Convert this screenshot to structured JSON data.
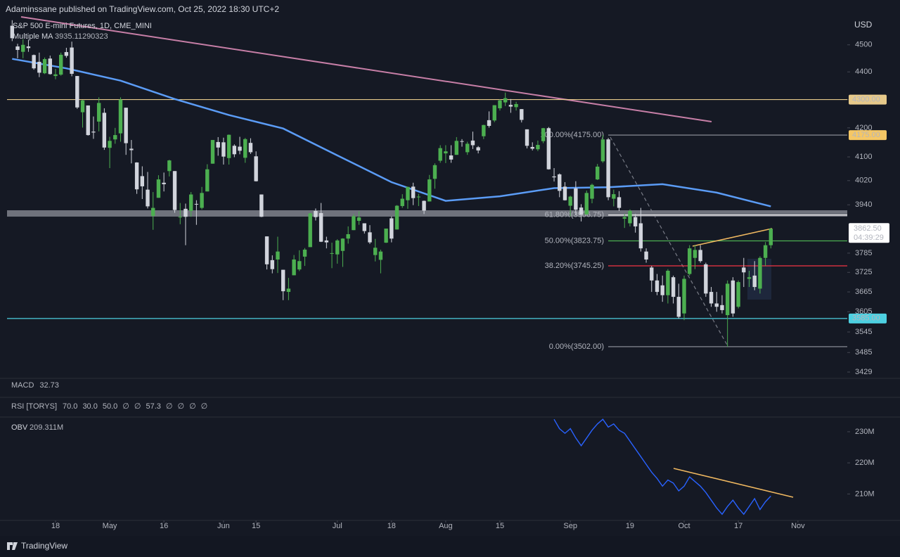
{
  "header": {
    "byline": "Adaminssane published on TradingView.com, Oct 25, 2022 18:30 UTC+2",
    "currency": "USD",
    "footer": "TradingView"
  },
  "chart_data": [
    {
      "type": "candlestick",
      "title": "S&P 500 E-mini Futures, 1D, CME_MINI",
      "up_color": "#4caf50",
      "down_color": "#d1d4dc",
      "candles": [
        [
          4572,
          4593,
          4514,
          4525
        ],
        [
          4494,
          4504,
          4450,
          4481
        ],
        [
          4474,
          4521,
          4450,
          4500
        ],
        [
          4494,
          4520,
          4474,
          4488
        ],
        [
          4462,
          4464,
          4408,
          4413
        ],
        [
          4437,
          4471,
          4381,
          4397
        ],
        [
          4395,
          4453,
          4392,
          4447
        ],
        [
          4449,
          4460,
          4390,
          4392
        ],
        [
          4385,
          4411,
          4373,
          4391
        ],
        [
          4390,
          4471,
          4386,
          4463
        ],
        [
          4473,
          4489,
          4452,
          4459
        ],
        [
          4490,
          4512,
          4384,
          4393
        ],
        [
          4385,
          4385,
          4267,
          4272
        ],
        [
          4255,
          4299,
          4201,
          4297
        ],
        [
          4279,
          4279,
          4173,
          4175
        ],
        [
          4187,
          4240,
          4162,
          4184
        ],
        [
          4222,
          4308,
          4188,
          4288
        ],
        [
          4253,
          4269,
          4124,
          4132
        ],
        [
          4131,
          4169,
          4062,
          4155
        ],
        [
          4160,
          4200,
          4145,
          4175
        ],
        [
          4181,
          4308,
          4152,
          4300
        ],
        [
          4271,
          4271,
          4107,
          4147
        ],
        [
          4128,
          4158,
          4078,
          4123
        ],
        [
          4081,
          4082,
          3976,
          3991
        ],
        [
          4035,
          4068,
          3959,
          4001
        ],
        [
          3990,
          4049,
          3928,
          3935
        ],
        [
          3904,
          3982,
          3859,
          3930
        ],
        [
          3963,
          4038,
          3963,
          4024
        ],
        [
          4013,
          4047,
          3984,
          4008
        ],
        [
          4052,
          4090,
          4034,
          4088
        ],
        [
          4052,
          4052,
          3914,
          3923
        ],
        [
          3900,
          3946,
          3877,
          3901
        ],
        [
          3927,
          3944,
          3810,
          3901
        ],
        [
          3920,
          3982,
          3901,
          3974
        ],
        [
          3943,
          3955,
          3875,
          3941
        ],
        [
          3930,
          3999,
          3925,
          3979
        ],
        [
          3984,
          4075,
          3984,
          4058
        ],
        [
          4077,
          4158,
          4077,
          4158
        ],
        [
          4151,
          4168,
          4104,
          4132
        ],
        [
          4150,
          4166,
          4074,
          4101
        ],
        [
          4096,
          4177,
          4074,
          4176
        ],
        [
          4138,
          4143,
          4099,
          4109
        ],
        [
          4135,
          4169,
          4109,
          4121
        ],
        [
          4097,
          4165,
          4080,
          4161
        ],
        [
          4148,
          4164,
          4110,
          4116
        ],
        [
          4102,
          4119,
          4017,
          4018
        ],
        [
          3974,
          3974,
          3900,
          3901
        ],
        [
          3838,
          3838,
          3734,
          3750
        ],
        [
          3763,
          3778,
          3722,
          3735
        ],
        [
          3765,
          3837,
          3723,
          3790
        ],
        [
          3733,
          3733,
          3640,
          3667
        ],
        [
          3665,
          3708,
          3640,
          3675
        ],
        [
          3716,
          3779,
          3716,
          3765
        ],
        [
          3734,
          3794,
          3729,
          3760
        ],
        [
          3774,
          3801,
          3745,
          3796
        ],
        [
          3804,
          3914,
          3804,
          3912
        ],
        [
          3920,
          3928,
          3889,
          3900
        ],
        [
          3913,
          3946,
          3820,
          3821
        ],
        [
          3825,
          3837,
          3800,
          3819
        ],
        [
          3785,
          3818,
          3738,
          3785
        ],
        [
          3781,
          3829,
          3752,
          3825
        ],
        [
          3792,
          3832,
          3742,
          3831
        ],
        [
          3831,
          3870,
          3815,
          3845
        ],
        [
          3858,
          3910,
          3858,
          3903
        ],
        [
          3888,
          3919,
          3875,
          3899
        ],
        [
          3880,
          3880,
          3847,
          3855
        ],
        [
          3851,
          3874,
          3814,
          3819
        ],
        [
          3779,
          3830,
          3759,
          3802
        ],
        [
          3764,
          3796,
          3722,
          3790
        ],
        [
          3818,
          3863,
          3817,
          3863
        ],
        [
          3896,
          3902,
          3819,
          3831
        ],
        [
          3860,
          3939,
          3860,
          3937
        ],
        [
          3936,
          3975,
          3930,
          3960
        ],
        [
          3955,
          4000,
          3927,
          3999
        ],
        [
          4000,
          4013,
          3939,
          3962
        ],
        [
          3965,
          3976,
          3936,
          3967
        ],
        [
          3953,
          3954,
          3910,
          3921
        ],
        [
          3951,
          4039,
          3951,
          4024
        ],
        [
          4026,
          4078,
          3993,
          4072
        ],
        [
          4087,
          4140,
          4080,
          4130
        ],
        [
          4112,
          4140,
          4079,
          4119
        ],
        [
          4105,
          4140,
          4080,
          4091
        ],
        [
          4107,
          4168,
          4107,
          4155
        ],
        [
          4154,
          4161,
          4135,
          4152
        ],
        [
          4116,
          4152,
          4107,
          4145
        ],
        [
          4156,
          4187,
          4127,
          4140
        ],
        [
          4133,
          4137,
          4112,
          4122
        ],
        [
          4171,
          4211,
          4161,
          4210
        ],
        [
          4227,
          4258,
          4201,
          4207
        ],
        [
          4226,
          4280,
          4220,
          4280
        ],
        [
          4269,
          4301,
          4261,
          4297
        ],
        [
          4290,
          4325,
          4277,
          4305
        ],
        [
          4281,
          4302,
          4253,
          4275
        ],
        [
          4273,
          4292,
          4261,
          4284
        ],
        [
          4266,
          4266,
          4219,
          4228
        ],
        [
          4195,
          4195,
          4129,
          4138
        ],
        [
          4134,
          4150,
          4122,
          4128
        ],
        [
          4126,
          4156,
          4120,
          4141
        ],
        [
          4154,
          4200,
          4147,
          4199
        ],
        [
          4199,
          4203,
          4057,
          4058
        ],
        [
          4034,
          4062,
          4017,
          4031
        ],
        [
          4041,
          4044,
          3965,
          3986
        ],
        [
          4000,
          4015,
          3954,
          3955
        ],
        [
          3937,
          3970,
          3903,
          3967
        ],
        [
          3994,
          4018,
          3906,
          3924
        ],
        [
          3931,
          3942,
          3886,
          3908
        ],
        [
          3909,
          3987,
          3907,
          3979
        ],
        [
          3960,
          4010,
          3945,
          4006
        ],
        [
          4024,
          4076,
          4022,
          4067
        ],
        [
          4085,
          4175,
          4080,
          4160
        ],
        [
          4160,
          4165,
          3955,
          3965
        ],
        [
          3960,
          3990,
          3935,
          3975
        ],
        [
          3965,
          3985,
          3920,
          3930
        ],
        [
          3895,
          3910,
          3865,
          3900
        ],
        [
          3880,
          3925,
          3870,
          3920
        ],
        [
          3900,
          3910,
          3850,
          3870
        ],
        [
          3880,
          3930,
          3790,
          3800
        ],
        [
          3790,
          3800,
          3755,
          3765
        ],
        [
          3740,
          3745,
          3665,
          3700
        ],
        [
          3700,
          3720,
          3655,
          3665
        ],
        [
          3685,
          3715,
          3635,
          3655
        ],
        [
          3655,
          3735,
          3630,
          3730
        ],
        [
          3710,
          3715,
          3630,
          3650
        ],
        [
          3650,
          3690,
          3585,
          3590
        ],
        [
          3600,
          3715,
          3580,
          3705
        ],
        [
          3720,
          3810,
          3715,
          3800
        ],
        [
          3770,
          3810,
          3735,
          3795
        ],
        [
          3795,
          3810,
          3755,
          3760
        ],
        [
          3750,
          3755,
          3650,
          3660
        ],
        [
          3665,
          3680,
          3620,
          3630
        ],
        [
          3630,
          3665,
          3605,
          3620
        ],
        [
          3625,
          3655,
          3600,
          3610
        ],
        [
          3595,
          3700,
          3502,
          3690
        ],
        [
          3700,
          3710,
          3590,
          3600
        ],
        [
          3620,
          3700,
          3615,
          3695
        ],
        [
          3740,
          3770,
          3680,
          3725
        ],
        [
          3705,
          3730,
          3680,
          3710
        ],
        [
          3715,
          3760,
          3670,
          3680
        ],
        [
          3675,
          3775,
          3660,
          3770
        ],
        [
          3770,
          3820,
          3745,
          3810
        ],
        [
          3810,
          3865,
          3800,
          3862.5
        ]
      ],
      "xlim": [
        -0.95,
        154.1
      ],
      "xticks": [
        {
          "value": 8,
          "label": "18"
        },
        {
          "value": 18,
          "label": "May"
        },
        {
          "value": 28,
          "label": "16"
        },
        {
          "value": 39,
          "label": "Jun"
        },
        {
          "value": 45,
          "label": "15"
        },
        {
          "value": 60,
          "label": "Jul"
        },
        {
          "value": 70,
          "label": "18"
        },
        {
          "value": 80,
          "label": "Aug"
        },
        {
          "value": 90,
          "label": "15"
        },
        {
          "value": 103,
          "label": "Sep"
        },
        {
          "value": 114,
          "label": "19"
        },
        {
          "value": 124,
          "label": "Oct"
        },
        {
          "value": 134,
          "label": "17"
        },
        {
          "value": 145,
          "label": "Nov"
        }
      ],
      "ylim": [
        3411,
        4595
      ],
      "log_scale": true,
      "yticks": [
        4500,
        4400,
        4300,
        4200,
        4100,
        4020,
        3940,
        3785,
        3725,
        3665,
        3605,
        3545,
        3485,
        3429
      ],
      "ma": {
        "name": "Multiple MA",
        "color": "#5b9cf6",
        "x": [
          0,
          10,
          20,
          30,
          40,
          50,
          60,
          70,
          80,
          90,
          100,
          110,
          120,
          130,
          140
        ],
        "values": [
          4448,
          4413,
          4368,
          4302,
          4245,
          4198,
          4105,
          4015,
          3953,
          3968,
          3995,
          3998,
          4008,
          3980,
          3935.11290323
        ]
      },
      "levels": [
        {
          "value": 4300,
          "label": "4300.00",
          "color": "#e6c98a"
        },
        {
          "value": 3585,
          "label": "3585.00",
          "color": "#4dd0e1"
        }
      ],
      "fib": [
        {
          "value": 4175,
          "label": "100.00%(4175.00)",
          "axis_label": "4175.00",
          "color": "#9598a1"
        },
        {
          "value": 3906.75,
          "label": "61.80%(3906.75)",
          "color": "#ffffff"
        },
        {
          "value": 3823.75,
          "label": "50.00%(3823.75)",
          "color": "#4caf50"
        },
        {
          "value": 3745.25,
          "label": "38.20%(3745.25)",
          "color": "#f23645"
        },
        {
          "value": 3502,
          "label": "0.00%(3502.00)",
          "color": "#9598a1"
        }
      ],
      "last_price": {
        "value": 3862.5,
        "label": "3862.50",
        "countdown": "04:39:29"
      }
    },
    {
      "type": "line",
      "title": "OBV",
      "color": "#2962ff",
      "legend_value": "209.311M",
      "x": [
        100,
        101,
        102,
        103,
        104,
        105,
        106,
        107,
        108,
        109,
        110,
        111,
        112,
        113,
        114,
        115,
        116,
        117,
        118,
        119,
        120,
        121,
        122,
        123,
        124,
        125,
        126,
        127,
        128,
        129,
        130,
        131,
        132,
        133,
        134,
        135,
        136,
        137,
        138,
        139,
        140
      ],
      "values": [
        234.0,
        231.0,
        229.5,
        231.0,
        228.0,
        225.5,
        228.0,
        230.5,
        232.5,
        234.0,
        231.5,
        232.5,
        230.5,
        229.5,
        227.0,
        224.5,
        222.0,
        219.5,
        217.0,
        215.0,
        212.5,
        214.5,
        213.5,
        211.0,
        212.5,
        215.5,
        214.0,
        212.5,
        210.5,
        208.0,
        205.5,
        203.5,
        206.0,
        208.0,
        205.5,
        203.5,
        206.0,
        208.5,
        205.0,
        207.5,
        209.311
      ],
      "ylim": [
        201.5,
        234.5
      ],
      "yticks": [
        {
          "value": 230,
          "label": "230M"
        },
        {
          "value": 220,
          "label": "220M"
        },
        {
          "value": 210,
          "label": "210M"
        }
      ]
    }
  ],
  "indicators": [
    {
      "name": "MACD",
      "values": [
        "32.73"
      ],
      "color": "#22ab94"
    },
    {
      "name": "RSI [TORYS]",
      "values": [
        "70.0",
        "30.0",
        "50.0",
        "∅",
        "∅",
        "57.3",
        "∅",
        "∅",
        "∅",
        "∅"
      ],
      "color": "#d1d4dc"
    }
  ]
}
